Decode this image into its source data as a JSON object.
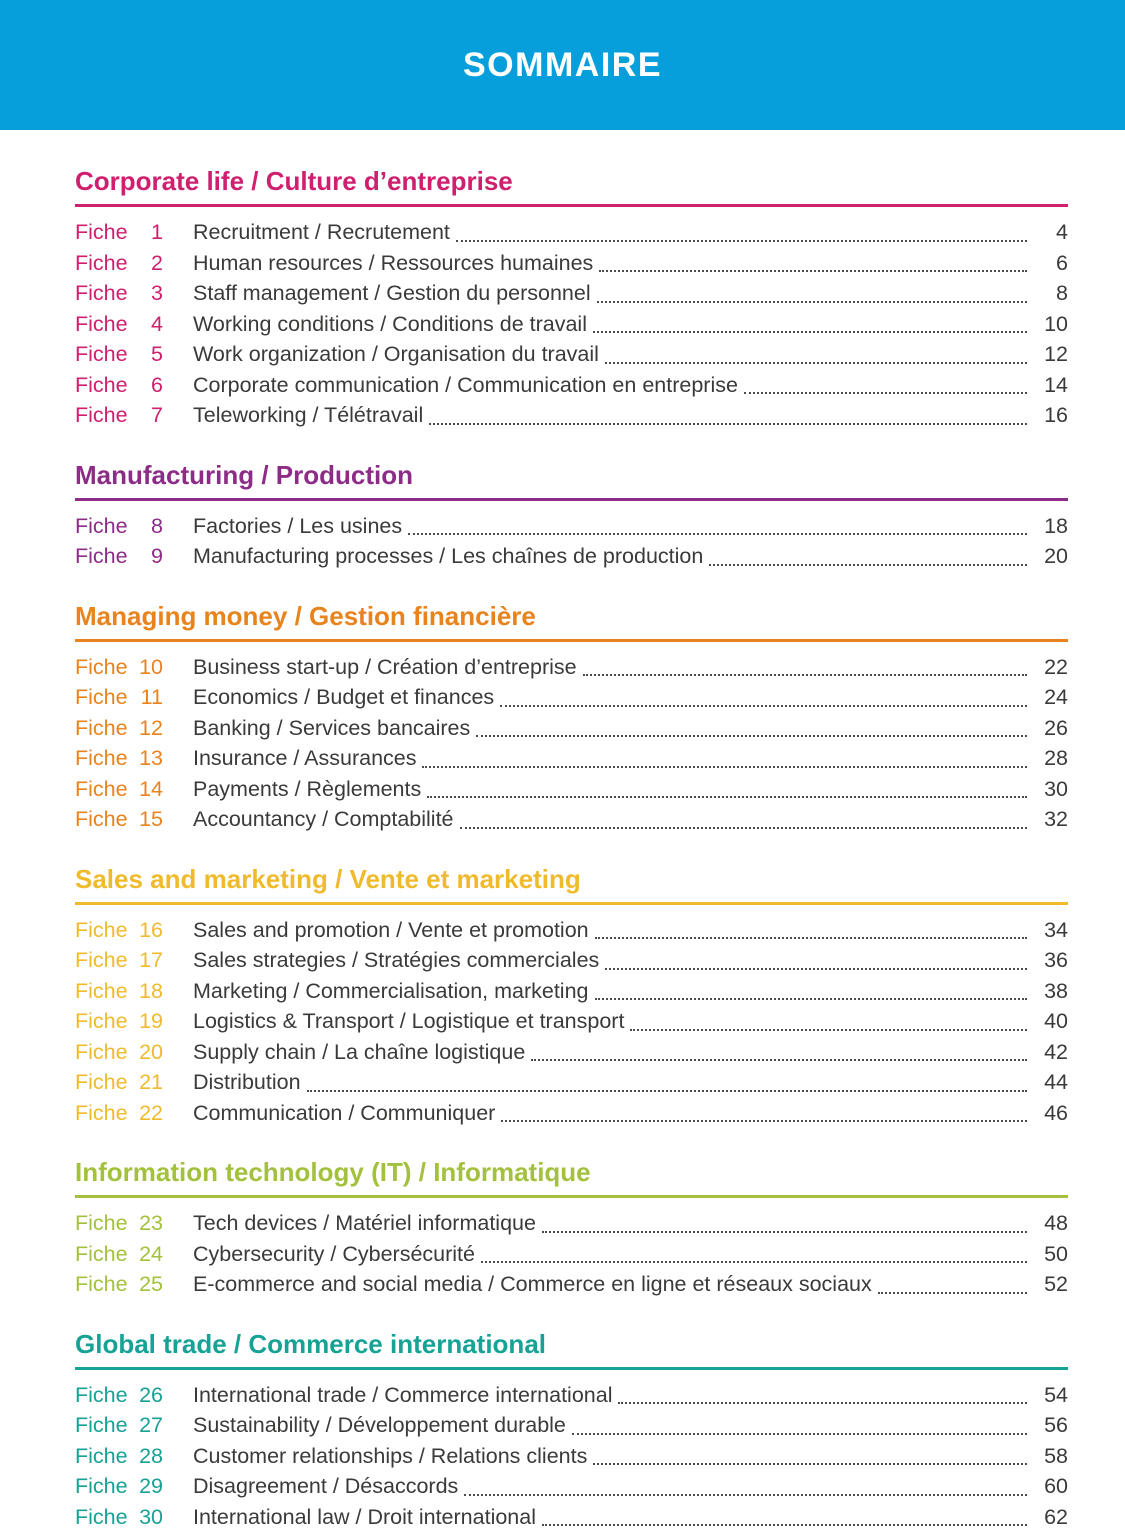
{
  "page": {
    "title": "SOMMAIRE",
    "header_bg": "#069edb",
    "text_color": "#3a3a39"
  },
  "fiche_word": "Fiche",
  "sections": [
    {
      "title": "Corporate life / Culture d’entreprise",
      "color": "#ce206e",
      "entries": [
        {
          "num": "1",
          "title": "Recruitment / Recrutement",
          "page": "4"
        },
        {
          "num": "2",
          "title": "Human resources / Ressources humaines",
          "page": "6"
        },
        {
          "num": "3",
          "title": "Staff management / Gestion du personnel",
          "page": "8"
        },
        {
          "num": "4",
          "title": "Working conditions / Conditions de travail",
          "page": "10"
        },
        {
          "num": "5",
          "title": "Work organization / Organisation du travail",
          "page": "12"
        },
        {
          "num": "6",
          "title": "Corporate communication / Communication en entreprise",
          "page": "14"
        },
        {
          "num": "7",
          "title": "Teleworking / Télétravail",
          "page": "16"
        }
      ]
    },
    {
      "title": "Manufacturing / Production",
      "color": "#8d2c87",
      "entries": [
        {
          "num": "8",
          "title": "Factories / Les usines",
          "page": "18"
        },
        {
          "num": "9",
          "title": "Manufacturing processes / Les chaînes de production",
          "page": "20"
        }
      ]
    },
    {
      "title": "Managing money / Gestion financière",
      "color": "#e8831d",
      "entries": [
        {
          "num": "10",
          "title": "Business start-up / Création d’entreprise",
          "page": "22"
        },
        {
          "num": "11",
          "title": "Economics / Budget et finances",
          "page": "24"
        },
        {
          "num": "12",
          "title": "Banking / Services bancaires",
          "page": "26"
        },
        {
          "num": "13",
          "title": "Insurance / Assurances",
          "page": "28"
        },
        {
          "num": "14",
          "title": "Payments / Règlements",
          "page": "30"
        },
        {
          "num": "15",
          "title": "Accountancy / Comptabilité",
          "page": "32"
        }
      ]
    },
    {
      "title": "Sales and marketing / Vente et marketing",
      "color": "#efbb2d",
      "entries": [
        {
          "num": "16",
          "title": "Sales and promotion / Vente et promotion",
          "page": "34"
        },
        {
          "num": "17",
          "title": "Sales strategies / Stratégies commerciales",
          "page": "36"
        },
        {
          "num": "18",
          "title": "Marketing / Commercialisation, marketing",
          "page": "38"
        },
        {
          "num": "19",
          "title": "Logistics & Transport / Logistique et transport",
          "page": "40"
        },
        {
          "num": "20",
          "title": "Supply chain / La chaîne logistique",
          "page": "42"
        },
        {
          "num": "21",
          "title": "Distribution",
          "page": "44"
        },
        {
          "num": "22",
          "title": "Communication / Communiquer",
          "page": "46"
        }
      ]
    },
    {
      "title": "Information technology (IT) / Informatique",
      "color": "#a3c13c",
      "entries": [
        {
          "num": "23",
          "title": "Tech devices / Matériel informatique",
          "page": "48"
        },
        {
          "num": "24",
          "title": "Cybersecurity / Cybersécurité",
          "page": "50"
        },
        {
          "num": "25",
          "title": "E-commerce and social media / Commerce en ligne et réseaux sociaux",
          "page": "52"
        }
      ]
    },
    {
      "title": "Global trade / Commerce international",
      "color": "#16a294",
      "entries": [
        {
          "num": "26",
          "title": "International trade / Commerce international",
          "page": "54"
        },
        {
          "num": "27",
          "title": "Sustainability / Développement durable",
          "page": "56"
        },
        {
          "num": "28",
          "title": "Customer relationships / Relations clients",
          "page": "58"
        },
        {
          "num": "29",
          "title": "Disagreement / Désaccords",
          "page": "60"
        },
        {
          "num": "30",
          "title": "International law / Droit international",
          "page": "62"
        }
      ]
    }
  ]
}
